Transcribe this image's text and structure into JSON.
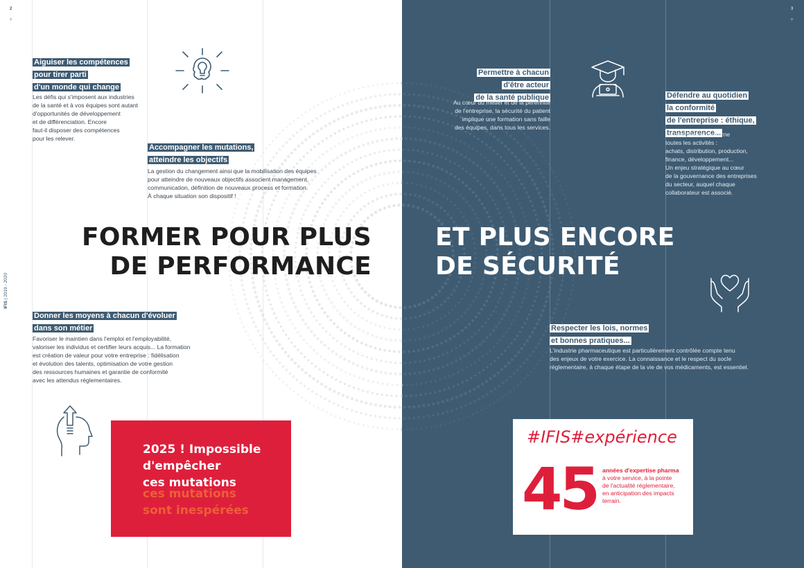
{
  "page_numbers": {
    "left": "2",
    "right": "3",
    "tick": "+"
  },
  "vertical_label": {
    "brand": "IFIS",
    "separator": "|",
    "years": "2019 - 2020"
  },
  "left": {
    "section1": {
      "title_lines": [
        "Aiguiser les compétences",
        "pour tirer parti",
        "d'un monde qui change"
      ],
      "body": "Les défis qui s'imposent aux industries\nde la santé et à vos équipes sont autant\nd'opportunités de développement\net de différenciation. Encore\nfaut-il disposer des compétences\npour les relever."
    },
    "section2": {
      "title_lines": [
        "Accompagner les mutations,",
        "atteindre les objectifs"
      ],
      "body": "La gestion du changement ainsi que la mobilisation des équipes\npour atteindre de nouveaux objectifs associent management,\ncommunication, définition de nouveaux process et formation.\nÀ chaque situation son dispositif !"
    },
    "headline": "FORMER POUR PLUS\nDE PERFORMANCE",
    "section3": {
      "title_lines": [
        "Donner les moyens à chacun d'évoluer",
        "dans son métier"
      ],
      "body": "Favoriser le maintien dans l'emploi et l'employabilité,\nvaloriser les individus et certifier leurs acquis... La formation\nest création de valeur pour votre entreprise : fidélisation\net évolution des talents, optimisation de votre gestion\ndes ressources humaines et garantie de conformité\navec les attendus réglementaires."
    },
    "red_box": {
      "main": "2025 ! Impossible\nd'empêcher\nces mutations",
      "ghost": "ces mutations\nsont inespérées"
    }
  },
  "right": {
    "section1": {
      "title_lines": [
        "Permettre à chacun",
        "d'être acteur",
        "de la santé publique"
      ],
      "body": "Au cœur du métier et de la pérennité\nde l'entreprise, la sécurité du patient\nimplique une formation sans faille\ndes équipes, dans tous les services."
    },
    "section2": {
      "title_lines": [
        "Défendre au quotidien",
        "la conformité",
        "de l'entreprise : éthique,",
        "transparence..."
      ],
      "body": "La compliance concerne\ntoutes les activités :\nachats, distribution, production,\nfinance, développement...\nUn enjeu stratégique au cœur\nde la gouvernance des entreprises\ndu secteur, auquel chaque\ncollaborateur est associé."
    },
    "headline": "ET PLUS ENCORE\nDE SÉCURITÉ",
    "section3": {
      "title_lines": [
        "Respecter les lois, normes",
        "et bonnes pratiques..."
      ],
      "body": "L'industrie pharmaceutique est particulièrement contrôlée compte tenu\ndes enjeux de votre exercice. La connaissance et le respect du socle\nréglementaire, à chaque étape de la vie de vos médicaments, est essentiel."
    },
    "experience_box": {
      "hashtag": "#IFIS#expérience",
      "number": "45",
      "title": "années d'expertise pharma",
      "description": "à votre service, à la pointe\nde l'actualité réglementaire,\nen anticipation des impacts\nterrain."
    }
  },
  "colors": {
    "navy": "#3e5b72",
    "red": "#de1f3b",
    "orange_ghost": "#f06a3a",
    "headline_dark": "#1e1e1e",
    "white": "#ffffff"
  },
  "icons": [
    "brain-lightbulb-icon",
    "graduate-laptop-icon",
    "heart-hands-icon",
    "head-upload-icon"
  ]
}
